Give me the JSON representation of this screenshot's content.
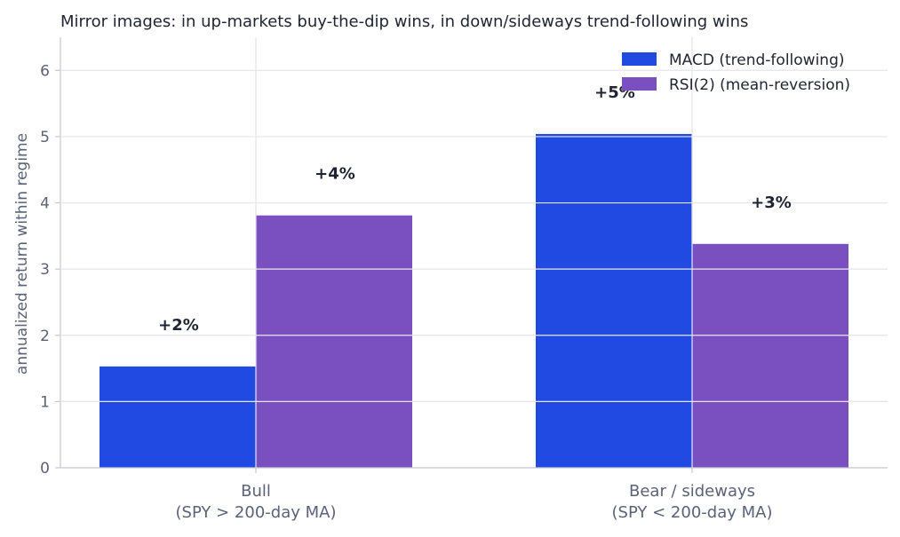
{
  "chart_data": {
    "type": "bar",
    "title": "Mirror images: in up-markets buy-the-dip wins, in down/sideways trend-following wins",
    "xlabel": "",
    "ylabel": "annualized return within regime",
    "categories": [
      [
        "Bull",
        "(SPY > 200-day MA)"
      ],
      [
        "Bear / sideways",
        "(SPY < 200-day MA)"
      ]
    ],
    "series": [
      {
        "name": "MACD (trend-following)",
        "color": "#204ae2",
        "values": [
          1.53,
          5.04
        ],
        "labels": [
          "+2%",
          "+5%"
        ]
      },
      {
        "name": "RSI(2) (mean-reversion)",
        "color": "#7a50c0",
        "values": [
          3.81,
          3.38
        ],
        "labels": [
          "+4%",
          "+3%"
        ]
      }
    ],
    "ylim": [
      0,
      6.5
    ],
    "yticks": [
      0,
      1,
      2,
      3,
      4,
      5,
      6
    ],
    "grid": true,
    "legend": "top-right"
  }
}
